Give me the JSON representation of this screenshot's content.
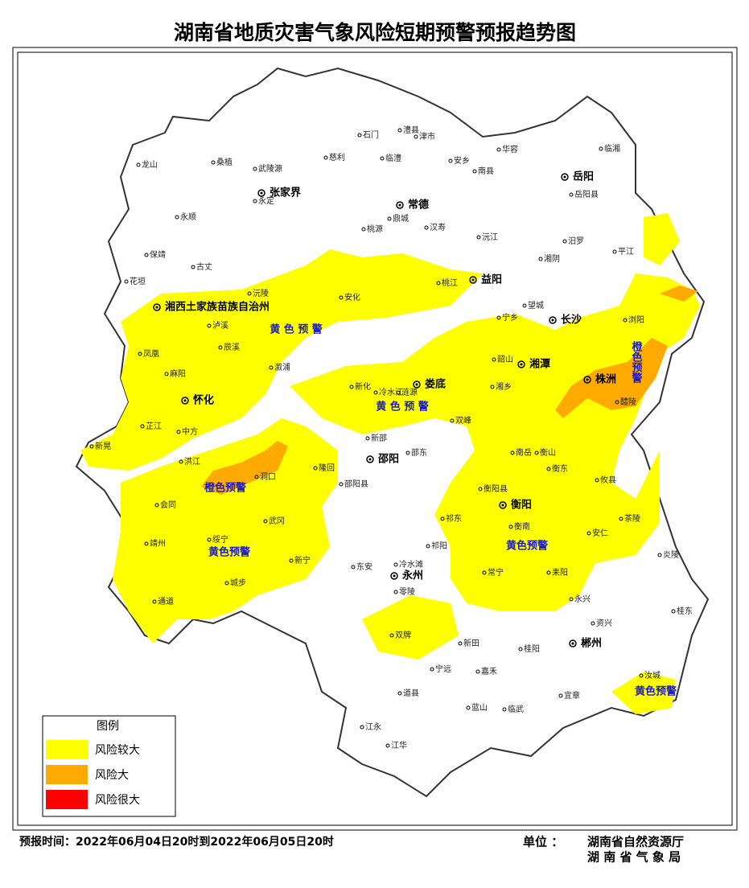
{
  "title": "湖南省地质灾害气象风险短期预警预报趋势图",
  "map": {
    "cities": [
      "张家界",
      "常德",
      "岳阳",
      "益阳",
      "长沙",
      "湘潭",
      "株洲",
      "娄底",
      "湘西土家族苗族自治州",
      "怀化",
      "邵阳",
      "衡阳",
      "永州",
      "郴州"
    ],
    "counties": [
      "龙山",
      "桑植",
      "武陵源",
      "慈利",
      "石门",
      "澧县",
      "津市",
      "临澧",
      "安乡",
      "华容",
      "南县",
      "临湘",
      "永定",
      "永顺",
      "鼎城",
      "桃源",
      "汉寿",
      "沅江",
      "湘阴",
      "汨罗",
      "平江",
      "岳阳县",
      "保靖",
      "古丈",
      "花垣",
      "沅陵",
      "桃江",
      "安化",
      "宁乡",
      "望城",
      "浏阳",
      "泸溪",
      "辰溪",
      "凤凰",
      "麻阳",
      "溆浦",
      "新化",
      "冷水江",
      "涟源",
      "双峰",
      "韶山",
      "湘乡",
      "醴陵",
      "攸县",
      "茶陵",
      "炎陵",
      "芷江",
      "中方",
      "新晃",
      "洪江",
      "会同",
      "靖州",
      "通道",
      "绥宁",
      "城步",
      "新宁",
      "武冈",
      "洞口",
      "隆回",
      "新邵",
      "邵东",
      "邵阳县",
      "南岳",
      "衡山",
      "衡东",
      "衡阳县",
      "衡南",
      "祁东",
      "祁阳",
      "常宁",
      "耒阳",
      "永兴",
      "资兴",
      "安仁",
      "冷水滩",
      "东安",
      "零陵",
      "双牌",
      "道县",
      "宁远",
      "新田",
      "嘉禾",
      "桂阳",
      "宜章",
      "临武",
      "蓝山",
      "江永",
      "江华",
      "汝城",
      "桂东"
    ],
    "warnings": [
      "黄 色 预 警",
      "黄 色 预 警",
      "橙色预警",
      "黄色预警",
      "黄色预警",
      "橙色预警",
      "黄色预警"
    ]
  },
  "legend": {
    "title": "图例",
    "items": [
      {
        "label": "风险较大",
        "color": "#ffff00"
      },
      {
        "label": "风险大",
        "color": "#ffaa00"
      },
      {
        "label": "风险很大",
        "color": "#ff0000"
      }
    ]
  },
  "footer": {
    "time": "预报时间：2022年06月04日20时到2022年06月05日20时",
    "unit": "单位 ：",
    "org1": "湖南省自然资源厅",
    "org2": "湖 南 省 气 象 局"
  }
}
